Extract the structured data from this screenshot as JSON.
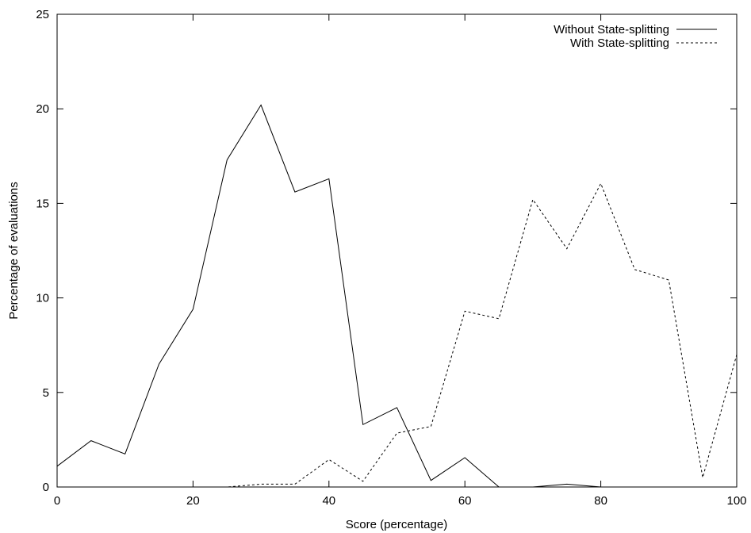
{
  "chart_data": {
    "type": "line",
    "xlabel": "Score (percentage)",
    "ylabel": "Percentage of evaluations",
    "xlim": [
      0,
      100
    ],
    "ylim": [
      0,
      25
    ],
    "xticks": [
      "0",
      "20",
      "40",
      "60",
      "80",
      "100"
    ],
    "yticks": [
      "0",
      "5",
      "10",
      "15",
      "20",
      "25"
    ],
    "legend_position": "top-right",
    "grid": false,
    "x": [
      0,
      5,
      10,
      15,
      20,
      25,
      30,
      35,
      40,
      45,
      50,
      55,
      60,
      65,
      70,
      75,
      80,
      85,
      90,
      95,
      100
    ],
    "series": [
      {
        "name": "Without State-splitting",
        "style": "solid",
        "color": "#000000",
        "values": [
          1.1,
          2.45,
          1.75,
          6.5,
          9.4,
          17.3,
          20.2,
          15.6,
          16.3,
          3.3,
          4.2,
          0.35,
          1.55,
          0,
          0,
          0.15,
          0,
          0,
          0,
          0,
          0
        ]
      },
      {
        "name": "With State-splitting",
        "style": "dashed",
        "color": "#000000",
        "values": [
          0,
          0,
          0,
          0,
          0,
          0,
          0.15,
          0.15,
          1.45,
          0.3,
          2.85,
          3.2,
          9.3,
          8.9,
          15.2,
          12.6,
          16.05,
          11.5,
          10.95,
          0.5,
          7.0
        ]
      }
    ]
  }
}
